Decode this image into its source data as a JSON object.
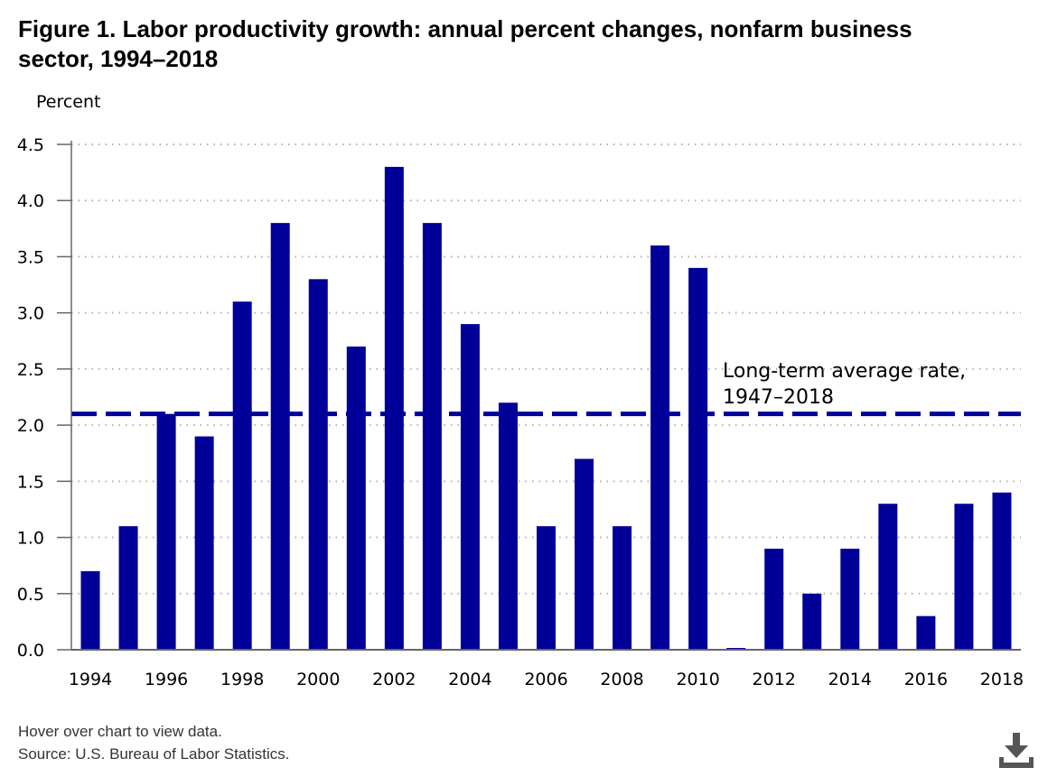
{
  "title": "Figure 1. Labor productivity growth: annual percent changes, nonfarm business sector, 1994–2018",
  "footnotes": {
    "hover_note": "Hover over chart to view data.",
    "source": "Source: U.S. Bureau of Labor Statistics."
  },
  "icons": {
    "download": "download-icon"
  },
  "colors": {
    "bar": "#000099",
    "reference_line": "#000099",
    "grid": "#b0b0b0",
    "axis": "#666666"
  },
  "chart_data": {
    "type": "bar",
    "title": "Figure 1. Labor productivity growth: annual percent changes, nonfarm business sector, 1994–2018",
    "xlabel": "",
    "ylabel": "Percent",
    "categories": [
      "1994",
      "1995",
      "1996",
      "1997",
      "1998",
      "1999",
      "2000",
      "2001",
      "2002",
      "2003",
      "2004",
      "2005",
      "2006",
      "2007",
      "2008",
      "2009",
      "2010",
      "2011",
      "2012",
      "2013",
      "2014",
      "2015",
      "2016",
      "2017",
      "2018"
    ],
    "x_tick_labels": [
      "1994",
      "1996",
      "1998",
      "2000",
      "2002",
      "2004",
      "2006",
      "2008",
      "2010",
      "2012",
      "2014",
      "2016",
      "2018"
    ],
    "values": [
      0.7,
      1.1,
      2.1,
      1.9,
      3.1,
      3.8,
      3.3,
      2.7,
      4.3,
      3.8,
      2.9,
      2.2,
      1.1,
      1.7,
      1.1,
      3.6,
      3.4,
      0.0,
      0.9,
      0.5,
      0.9,
      1.3,
      0.3,
      1.3,
      1.4
    ],
    "ylim": [
      0,
      4.5
    ],
    "y_ticks": [
      "0.0",
      "0.5",
      "1.0",
      "1.5",
      "2.0",
      "2.5",
      "3.0",
      "3.5",
      "4.0",
      "4.5"
    ],
    "grid": true,
    "reference_line": {
      "value": 2.1,
      "label_line1": "Long-term average rate,",
      "label_line2": "1947–2018"
    }
  }
}
